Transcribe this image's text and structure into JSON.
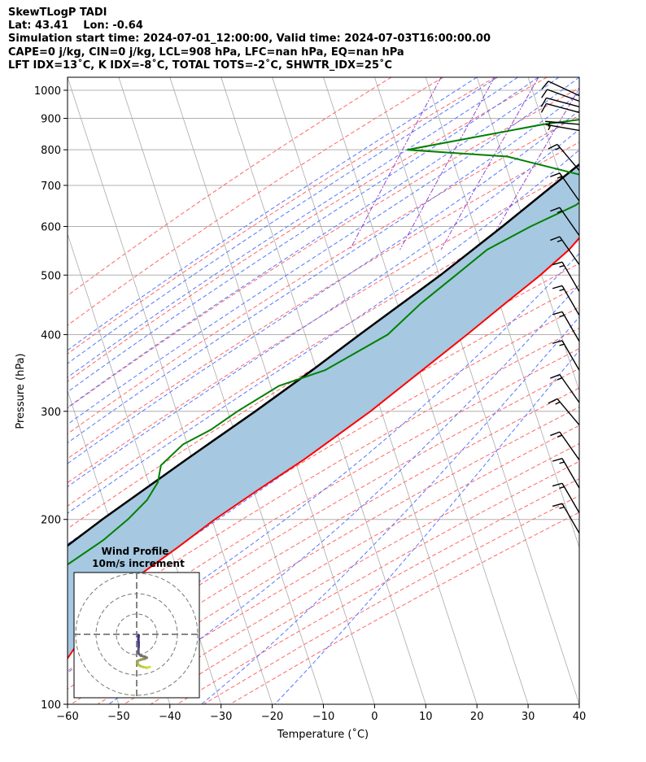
{
  "header": {
    "line1": "SkewTLogP TADI",
    "line2": "Lat: 43.41    Lon: -0.64",
    "line3": "Simulation start time: 2024-07-01_12:00:00, Valid time: 2024-07-03T16:00:00.00",
    "line4": "CAPE=0 j/kg, CIN=0 j/kg, LCL=908 hPa, LFC=nan hPa, EQ=nan hPa",
    "line5": "LFT IDX=13˚C, K IDX=-8˚C, TOTAL TOTS=-2˚C, SHWTR_IDX=25˚C"
  },
  "colors": {
    "temperature": "#ff0000",
    "dewpoint": "#008000",
    "parcel": "#000000",
    "shade": "#a6c8e0",
    "dry_adiabat": "#ff6666",
    "moist_adiabat": "#5577ff",
    "mixing_ratio": "#9944cc",
    "isotherm": "#aaaaaa"
  },
  "chart_data": {
    "type": "skewt",
    "xlabel": "Temperature (˚C)",
    "ylabel": "Pressure (hPa)",
    "xlim": [
      -60,
      40
    ],
    "ylim": [
      1050,
      100
    ],
    "x_ticks": [
      "−60",
      "−50",
      "−40",
      "−30",
      "−20",
      "−10",
      "0",
      "10",
      "20",
      "30",
      "40"
    ],
    "y_ticks": [
      "1000",
      "900",
      "800",
      "700",
      "600",
      "500",
      "400",
      "300",
      "200",
      "100"
    ],
    "temperature_profile": [
      [
        1000,
        21.5
      ],
      [
        975,
        18.5
      ],
      [
        950,
        17.5
      ],
      [
        900,
        17.5
      ],
      [
        850,
        18.2
      ],
      [
        800,
        19.5
      ],
      [
        750,
        18.3
      ],
      [
        700,
        15.5
      ],
      [
        650,
        13.5
      ],
      [
        600,
        11.5
      ],
      [
        550,
        9.0
      ],
      [
        500,
        5.0
      ],
      [
        450,
        0.0
      ],
      [
        400,
        -5.5
      ],
      [
        350,
        -12.0
      ],
      [
        300,
        -19.5
      ],
      [
        250,
        -29.5
      ],
      [
        225,
        -36.0
      ],
      [
        200,
        -43.0
      ],
      [
        180,
        -48.5
      ],
      [
        160,
        -55.0
      ],
      [
        155,
        -56.5
      ],
      [
        145,
        -58.0
      ],
      [
        138,
        -60.0
      ],
      [
        135,
        -61.5
      ],
      [
        125,
        -62.0
      ],
      [
        115,
        -63.5
      ],
      [
        110,
        -65.5
      ],
      [
        100,
        -66.0
      ]
    ],
    "dewpoint_profile": [
      [
        1000,
        14.3
      ],
      [
        950,
        14.8
      ],
      [
        920,
        13.0
      ],
      [
        880,
        -4.0
      ],
      [
        800,
        -29.0
      ],
      [
        780,
        -9.0
      ],
      [
        720,
        9.0
      ],
      [
        690,
        10.5
      ],
      [
        650,
        7.5
      ],
      [
        600,
        0.0
      ],
      [
        550,
        -7.0
      ],
      [
        500,
        -11.5
      ],
      [
        450,
        -16.5
      ],
      [
        400,
        -21.0
      ],
      [
        350,
        -31.0
      ],
      [
        330,
        -39.0
      ],
      [
        300,
        -45.5
      ],
      [
        280,
        -49.5
      ],
      [
        265,
        -54.0
      ],
      [
        245,
        -57.0
      ],
      [
        230,
        -56.5
      ],
      [
        215,
        -57.5
      ],
      [
        200,
        -60.0
      ],
      [
        185,
        -63.5
      ],
      [
        170,
        -68.5
      ],
      [
        160,
        -72.5
      ],
      [
        150,
        -73.0
      ],
      [
        142,
        -73.5
      ],
      [
        132,
        -74.5
      ],
      [
        128,
        -72.0
      ],
      [
        118,
        -72.5
      ],
      [
        110,
        -73.0
      ],
      [
        100,
        -72.0
      ]
    ],
    "parcel_profile": [
      [
        1000,
        21.5
      ],
      [
        975,
        19.3
      ],
      [
        950,
        17.0
      ],
      [
        908,
        13.5
      ],
      [
        850,
        11.0
      ],
      [
        800,
        8.2
      ],
      [
        700,
        1.8
      ],
      [
        600,
        -5.5
      ],
      [
        500,
        -14.5
      ],
      [
        400,
        -26.5
      ],
      [
        350,
        -33.5
      ],
      [
        300,
        -42.0
      ],
      [
        250,
        -52.5
      ],
      [
        200,
        -65.0
      ],
      [
        150,
        -80.0
      ],
      [
        100,
        -100.0
      ]
    ],
    "wind_barbs": [
      {
        "pressure": 980,
        "speed_kt": 10,
        "direction_deg": 295
      },
      {
        "pressure": 960,
        "speed_kt": 10,
        "direction_deg": 290
      },
      {
        "pressure": 940,
        "speed_kt": 10,
        "direction_deg": 285
      },
      {
        "pressure": 920,
        "speed_kt": 10,
        "direction_deg": 285
      },
      {
        "pressure": 880,
        "speed_kt": 5,
        "direction_deg": 275
      },
      {
        "pressure": 860,
        "speed_kt": 5,
        "direction_deg": 280
      },
      {
        "pressure": 740,
        "speed_kt": 15,
        "direction_deg": 320
      },
      {
        "pressure": 660,
        "speed_kt": 15,
        "direction_deg": 325
      },
      {
        "pressure": 580,
        "speed_kt": 15,
        "direction_deg": 325
      },
      {
        "pressure": 520,
        "speed_kt": 15,
        "direction_deg": 325
      },
      {
        "pressure": 470,
        "speed_kt": 15,
        "direction_deg": 330
      },
      {
        "pressure": 430,
        "speed_kt": 15,
        "direction_deg": 330
      },
      {
        "pressure": 390,
        "speed_kt": 15,
        "direction_deg": 330
      },
      {
        "pressure": 350,
        "speed_kt": 15,
        "direction_deg": 330
      },
      {
        "pressure": 310,
        "speed_kt": 15,
        "direction_deg": 325
      },
      {
        "pressure": 285,
        "speed_kt": 15,
        "direction_deg": 320
      },
      {
        "pressure": 250,
        "speed_kt": 15,
        "direction_deg": 325
      },
      {
        "pressure": 225,
        "speed_kt": 15,
        "direction_deg": 330
      },
      {
        "pressure": 205,
        "speed_kt": 15,
        "direction_deg": 330
      },
      {
        "pressure": 190,
        "speed_kt": 15,
        "direction_deg": 330
      }
    ],
    "hodograph": {
      "title": "Wind Profile",
      "subtitle": "10m/s increment",
      "points_ms": [
        [
          6.5,
          -16.0
        ],
        [
          5.0,
          -16.5
        ],
        [
          3.0,
          -16.0
        ],
        [
          1.5,
          -15.5
        ],
        [
          0.5,
          -14.5
        ],
        [
          0.5,
          -13.0
        ],
        [
          2.0,
          -12.5
        ],
        [
          4.0,
          -12.0
        ],
        [
          5.0,
          -11.5
        ],
        [
          4.0,
          -11.0
        ],
        [
          2.0,
          -10.5
        ],
        [
          1.0,
          -9.5
        ],
        [
          0.8,
          -8.0
        ],
        [
          1.0,
          -6.0
        ],
        [
          1.0,
          -4.0
        ],
        [
          0.8,
          -2.5
        ],
        [
          1.0,
          -0.5
        ]
      ]
    }
  }
}
